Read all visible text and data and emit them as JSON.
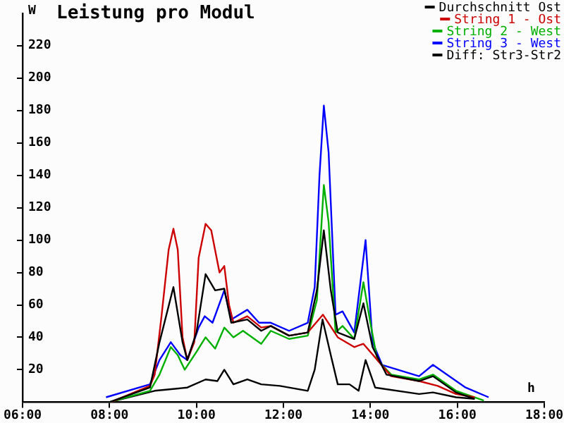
{
  "chart_data": {
    "type": "line",
    "title": "Leistung pro Modul",
    "xlabel": "h",
    "ylabel": "W",
    "xlim": [
      6,
      18
    ],
    "xticks": [
      {
        "value": 6,
        "label": "06:00"
      },
      {
        "value": 8,
        "label": "08:00"
      },
      {
        "value": 10,
        "label": "10:00"
      },
      {
        "value": 12,
        "label": "12:00"
      },
      {
        "value": 14,
        "label": "14:00"
      },
      {
        "value": 16,
        "label": "16:00"
      },
      {
        "value": 18,
        "label": "18:00"
      }
    ],
    "ylim": [
      0,
      240
    ],
    "yticks": [
      20,
      40,
      60,
      80,
      100,
      120,
      140,
      160,
      180,
      200,
      220
    ],
    "grid": false,
    "legend": "top right",
    "marker": "none",
    "line_style": "solid",
    "series": [
      {
        "name": "Durchschnitt Ost",
        "color": "#000000",
        "x": [
          8.0,
          8.93,
          9.15,
          9.47,
          9.68,
          9.79,
          10.0,
          10.21,
          10.43,
          10.64,
          10.8,
          11.17,
          11.49,
          11.71,
          12.13,
          12.56,
          12.77,
          12.93,
          13.09,
          13.25,
          13.63,
          13.84,
          14.05,
          14.37,
          15.12,
          15.44,
          15.97,
          16.4
        ],
        "values": [
          0,
          9,
          37,
          71,
          37,
          26,
          43,
          79,
          69,
          70,
          49,
          51,
          44,
          47,
          41,
          43,
          69,
          106,
          69,
          43,
          39,
          61,
          34,
          17,
          13,
          16,
          6,
          2
        ]
      },
      {
        "name": "String 1 - Ost",
        "color": "#cc0000",
        "x": [
          8.03,
          8.93,
          9.04,
          9.2,
          9.36,
          9.47,
          9.57,
          9.68,
          9.79,
          9.95,
          10.05,
          10.21,
          10.34,
          10.53,
          10.64,
          10.75,
          10.85,
          11.17,
          11.49,
          11.71,
          12.13,
          12.56,
          12.91,
          13.25,
          13.63,
          13.84,
          14.16,
          14.48,
          15.12,
          15.55,
          15.97,
          16.4
        ],
        "values": [
          0,
          10,
          17,
          54,
          94,
          107,
          94,
          40,
          26,
          37,
          89,
          110,
          106,
          80,
          84,
          60,
          49,
          53,
          46,
          47,
          41,
          43,
          54,
          40,
          34,
          36,
          26,
          16,
          13,
          10,
          5,
          3
        ]
      },
      {
        "name": "String 2 - West",
        "color": "#00b000",
        "x": [
          8.0,
          8.93,
          9.15,
          9.41,
          9.57,
          9.73,
          10.0,
          10.21,
          10.43,
          10.64,
          10.85,
          11.07,
          11.49,
          11.71,
          12.13,
          12.56,
          12.77,
          12.93,
          13.04,
          13.2,
          13.36,
          13.63,
          13.84,
          14.0,
          14.16,
          14.48,
          15.12,
          15.44,
          15.97,
          16.61
        ],
        "values": [
          0,
          7,
          17,
          34,
          29,
          20,
          31,
          40,
          33,
          46,
          40,
          44,
          36,
          44,
          39,
          41,
          63,
          134,
          111,
          43,
          47,
          39,
          74,
          49,
          26,
          17,
          14,
          17,
          7,
          1
        ]
      },
      {
        "name": "String 3 - West",
        "color": "#0000ff",
        "x": [
          7.92,
          8.93,
          9.15,
          9.41,
          9.63,
          9.79,
          10.05,
          10.19,
          10.37,
          10.64,
          10.8,
          11.17,
          11.44,
          11.71,
          12.13,
          12.56,
          12.72,
          12.83,
          12.93,
          13.04,
          13.2,
          13.36,
          13.63,
          13.89,
          14.05,
          14.27,
          15.12,
          15.44,
          16.19,
          16.72
        ],
        "values": [
          3,
          11,
          26,
          37,
          29,
          26,
          46,
          53,
          49,
          69,
          51,
          57,
          49,
          49,
          44,
          49,
          71,
          140,
          183,
          154,
          54,
          56,
          43,
          100,
          37,
          23,
          16,
          23,
          9,
          3
        ]
      },
      {
        "name": "Diff: Str3-Str2",
        "color": "#000000",
        "x": [
          8.0,
          9.04,
          9.79,
          10.21,
          10.48,
          10.64,
          10.85,
          11.17,
          11.49,
          11.92,
          12.56,
          12.72,
          12.9,
          13.09,
          13.25,
          13.52,
          13.73,
          13.89,
          14.11,
          15.12,
          15.44,
          15.97,
          16.4
        ],
        "values": [
          0,
          7,
          9,
          14,
          13,
          20,
          11,
          14,
          11,
          10,
          7,
          20,
          51,
          29,
          11,
          11,
          7,
          26,
          9,
          5,
          6,
          3,
          2
        ]
      }
    ]
  }
}
